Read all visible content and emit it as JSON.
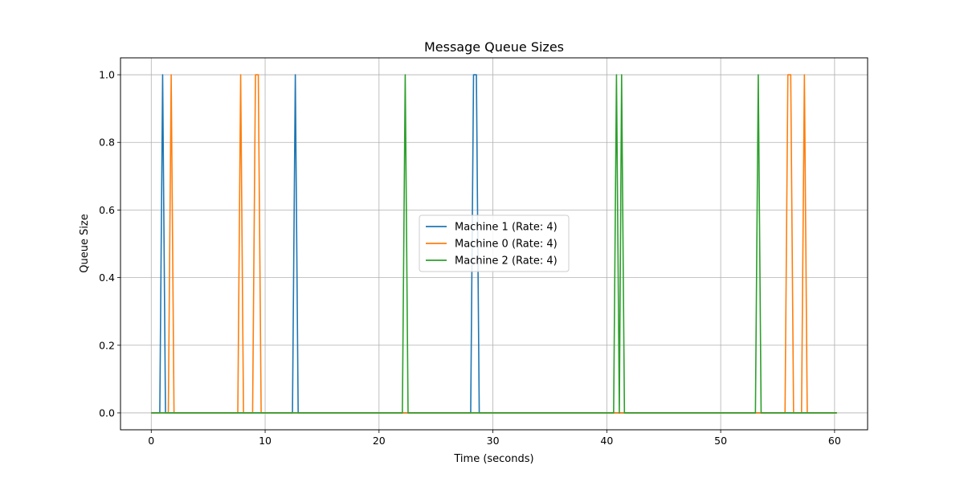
{
  "chart_data": {
    "type": "line",
    "title": "Message Queue Sizes",
    "xlabel": "Time (seconds)",
    "ylabel": "Queue Size",
    "xlim": [
      -2.7,
      62.9
    ],
    "ylim": [
      -0.05,
      1.05
    ],
    "xticks": [
      0,
      10,
      20,
      30,
      40,
      50,
      60
    ],
    "xtick_labels": [
      "0",
      "10",
      "20",
      "30",
      "40",
      "50",
      "60"
    ],
    "yticks": [
      0.0,
      0.2,
      0.4,
      0.6,
      0.8,
      1.0
    ],
    "ytick_labels": [
      "0.0",
      "0.2",
      "0.4",
      "0.6",
      "0.8",
      "1.0"
    ],
    "grid": true,
    "legend_position": "center",
    "series": [
      {
        "name": "Machine 1 (Rate: 4)",
        "color": "#1f77b4",
        "points": [
          [
            0,
            0
          ],
          [
            0.75,
            0
          ],
          [
            1.0,
            1
          ],
          [
            1.25,
            0
          ],
          [
            12.4,
            0
          ],
          [
            12.65,
            1
          ],
          [
            12.9,
            0
          ],
          [
            28.05,
            0
          ],
          [
            28.3,
            1
          ],
          [
            28.55,
            1
          ],
          [
            28.8,
            0
          ],
          [
            60.2,
            0
          ]
        ]
      },
      {
        "name": "Machine 0 (Rate: 4)",
        "color": "#ff7f0e",
        "points": [
          [
            0,
            0
          ],
          [
            1.5,
            0
          ],
          [
            1.75,
            1
          ],
          [
            2.0,
            0
          ],
          [
            7.6,
            0
          ],
          [
            7.85,
            1
          ],
          [
            8.1,
            0
          ],
          [
            8.9,
            0
          ],
          [
            9.15,
            1
          ],
          [
            9.4,
            1
          ],
          [
            9.65,
            0
          ],
          [
            22.5,
            0
          ],
          [
            22.75,
            0
          ],
          [
            41.0,
            0
          ],
          [
            41.3,
            0
          ],
          [
            55.65,
            0
          ],
          [
            55.9,
            1
          ],
          [
            56.15,
            1
          ],
          [
            56.4,
            0
          ],
          [
            57.1,
            0
          ],
          [
            57.35,
            1
          ],
          [
            57.6,
            0
          ],
          [
            60.2,
            0
          ]
        ]
      },
      {
        "name": "Machine 2 (Rate: 4)",
        "color": "#2ca02c",
        "points": [
          [
            0,
            0
          ],
          [
            22.05,
            0
          ],
          [
            22.3,
            1
          ],
          [
            22.55,
            0
          ],
          [
            40.6,
            0
          ],
          [
            40.85,
            1
          ],
          [
            41.1,
            0
          ],
          [
            41.3,
            1
          ],
          [
            41.55,
            0
          ],
          [
            53.05,
            0
          ],
          [
            53.3,
            1
          ],
          [
            53.55,
            0
          ],
          [
            60.2,
            0
          ]
        ]
      }
    ]
  }
}
